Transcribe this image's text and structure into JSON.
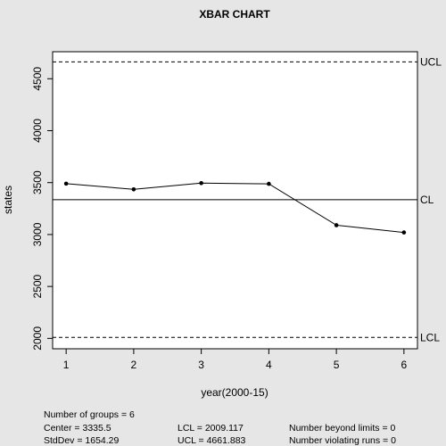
{
  "chart_data": {
    "type": "line",
    "title": "XBAR CHART",
    "xlabel": "year(2000-15)",
    "ylabel": "states",
    "x": [
      1,
      2,
      3,
      4,
      5,
      6
    ],
    "values": [
      3490,
      3435,
      3495,
      3488,
      3090,
      3020
    ],
    "xlim": [
      0.8,
      6.2
    ],
    "ylim": [
      1900,
      4760
    ],
    "xticks": [
      "1",
      "2",
      "3",
      "4",
      "5",
      "6"
    ],
    "yticks": [
      "2000",
      "2500",
      "3000",
      "3500",
      "4000",
      "4500"
    ],
    "ytick_values": [
      2000,
      2500,
      3000,
      3500,
      4000,
      4500
    ],
    "control_lines": [
      {
        "label": "UCL",
        "value": 4661.883,
        "style": "dashed"
      },
      {
        "label": "CL",
        "value": 3335.5,
        "style": "solid"
      },
      {
        "label": "LCL",
        "value": 2009.117,
        "style": "dashed"
      }
    ],
    "grid": false
  },
  "stats": {
    "groups": "Number of groups = 6",
    "center": "Center = 3335.5",
    "stddev": "StdDev = 1654.29",
    "lcl": "LCL = 2009.117",
    "ucl": "UCL = 4661.883",
    "beyond": "Number beyond limits = 0",
    "runs": "Number violating runs = 0"
  },
  "colors": {
    "background": "#e6e6e6",
    "plot_background": "#ffffff",
    "line": "#000000"
  }
}
